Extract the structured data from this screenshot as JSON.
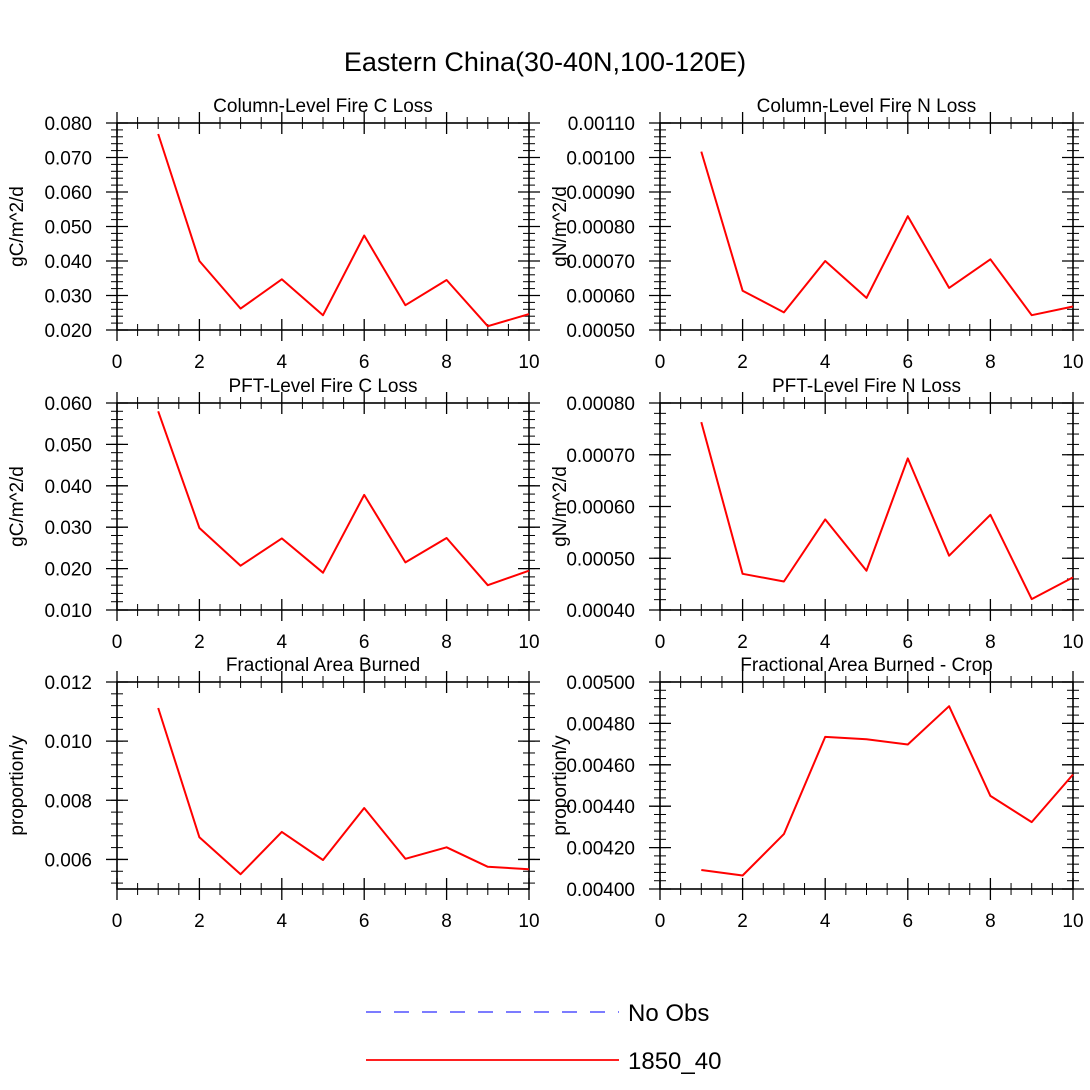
{
  "figure": {
    "title": "Eastern China(30-40N,100-120E)"
  },
  "legend": {
    "placement": "bottom-center",
    "entries": [
      {
        "label": "No Obs",
        "color": "#6a6aff",
        "style": "dashed"
      },
      {
        "label": "1850_40",
        "color": "#ff0000",
        "style": "solid"
      }
    ]
  },
  "chart_data": [
    {
      "type": "line",
      "title": "Column-Level Fire C Loss",
      "ylabel": "gC/m^2/d",
      "xlim": [
        0,
        10
      ],
      "ylim": [
        0.02,
        0.08
      ],
      "xticks": [
        "0",
        "2",
        "4",
        "6",
        "8",
        "10"
      ],
      "yticks": [
        "0.020",
        "0.030",
        "0.040",
        "0.050",
        "0.060",
        "0.070",
        "0.080"
      ],
      "x": [
        1,
        2,
        3,
        4,
        5,
        6,
        7,
        8,
        9,
        10
      ],
      "series": [
        {
          "name": "1850_40",
          "color": "#ff0000",
          "values": [
            0.0768,
            0.04,
            0.0262,
            0.0347,
            0.0243,
            0.0474,
            0.0272,
            0.0345,
            0.0211,
            0.0246
          ]
        }
      ]
    },
    {
      "type": "line",
      "title": "Column-Level Fire N Loss",
      "ylabel": "gN/m^2/d",
      "xlim": [
        0,
        10
      ],
      "ylim": [
        0.0005,
        0.0011
      ],
      "xticks": [
        "0",
        "2",
        "4",
        "6",
        "8",
        "10"
      ],
      "yticks": [
        "0.00050",
        "0.00060",
        "0.00070",
        "0.00080",
        "0.00090",
        "0.00100",
        "0.00110"
      ],
      "x": [
        1,
        2,
        3,
        4,
        5,
        6,
        7,
        8,
        9,
        10
      ],
      "series": [
        {
          "name": "1850_40",
          "color": "#ff0000",
          "values": [
            0.001017,
            0.000614,
            0.000551,
            0.0007,
            0.000593,
            0.00083,
            0.000622,
            0.000705,
            0.000543,
            0.000568
          ]
        }
      ]
    },
    {
      "type": "line",
      "title": "PFT-Level Fire C Loss",
      "ylabel": "gC/m^2/d",
      "xlim": [
        0,
        10
      ],
      "ylim": [
        0.01,
        0.06
      ],
      "xticks": [
        "0",
        "2",
        "4",
        "6",
        "8",
        "10"
      ],
      "yticks": [
        "0.010",
        "0.020",
        "0.030",
        "0.040",
        "0.050",
        "0.060"
      ],
      "x": [
        1,
        2,
        3,
        4,
        5,
        6,
        7,
        8,
        9,
        10
      ],
      "series": [
        {
          "name": "1850_40",
          "color": "#ff0000",
          "values": [
            0.058,
            0.0298,
            0.0207,
            0.0273,
            0.019,
            0.0378,
            0.0215,
            0.0274,
            0.016,
            0.0195
          ]
        }
      ]
    },
    {
      "type": "line",
      "title": "PFT-Level Fire N Loss",
      "ylabel": "gN/m^2/d",
      "xlim": [
        0,
        10
      ],
      "ylim": [
        0.0004,
        0.0008
      ],
      "xticks": [
        "0",
        "2",
        "4",
        "6",
        "8",
        "10"
      ],
      "yticks": [
        "0.00040",
        "0.00050",
        "0.00060",
        "0.00070",
        "0.00080"
      ],
      "x": [
        1,
        2,
        3,
        4,
        5,
        6,
        7,
        8,
        9,
        10
      ],
      "series": [
        {
          "name": "1850_40",
          "color": "#ff0000",
          "values": [
            0.000763,
            0.00047,
            0.000455,
            0.000575,
            0.000476,
            0.000693,
            0.000505,
            0.000584,
            0.000421,
            0.000463
          ]
        }
      ]
    },
    {
      "type": "line",
      "title": "Fractional Area Burned",
      "ylabel": "proportion/y",
      "xlim": [
        0,
        10
      ],
      "ylim": [
        0.005,
        0.012
      ],
      "xticks": [
        "0",
        "2",
        "4",
        "6",
        "8",
        "10"
      ],
      "yticks": [
        "0.006",
        "0.008",
        "0.010",
        "0.012"
      ],
      "ytick_values": [
        0.006,
        0.008,
        0.01,
        0.012
      ],
      "x": [
        1,
        2,
        3,
        4,
        5,
        6,
        7,
        8,
        9,
        10
      ],
      "series": [
        {
          "name": "1850_40",
          "color": "#ff0000",
          "values": [
            0.01112,
            0.00675,
            0.0055,
            0.00693,
            0.00598,
            0.00774,
            0.00602,
            0.00641,
            0.00575,
            0.00567
          ]
        }
      ]
    },
    {
      "type": "line",
      "title": "Fractional Area Burned - Crop",
      "ylabel": "proportion/y",
      "xlim": [
        0,
        10
      ],
      "ylim": [
        0.004,
        0.005
      ],
      "xticks": [
        "0",
        "2",
        "4",
        "6",
        "8",
        "10"
      ],
      "yticks": [
        "0.00400",
        "0.00420",
        "0.00440",
        "0.00460",
        "0.00480",
        "0.00500"
      ],
      "x": [
        1,
        2,
        3,
        4,
        5,
        6,
        7,
        8,
        9,
        10
      ],
      "series": [
        {
          "name": "1850_40",
          "color": "#ff0000",
          "values": [
            0.004092,
            0.004065,
            0.004265,
            0.004735,
            0.004723,
            0.004698,
            0.004883,
            0.00445,
            0.004323,
            0.004553
          ]
        }
      ]
    }
  ]
}
